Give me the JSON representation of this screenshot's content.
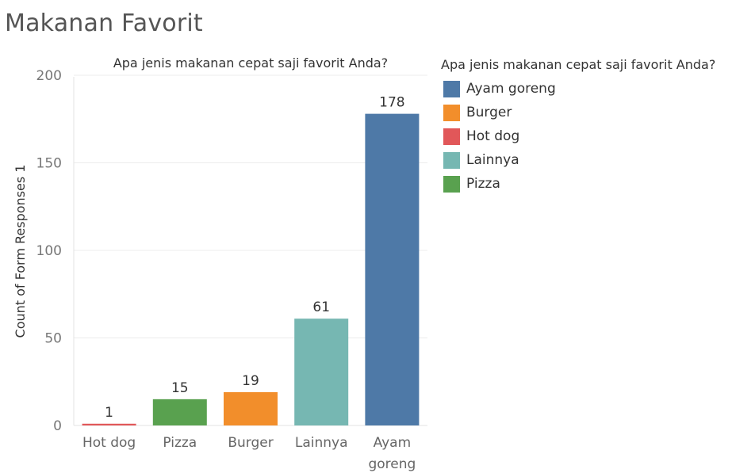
{
  "page": {
    "title": "Makanan Favorit"
  },
  "chart_data": {
    "type": "bar",
    "title": "Apa jenis makanan cepat saji favorit Anda?",
    "xlabel": "",
    "ylabel": "Count of Form Responses 1",
    "ylim": [
      0,
      200
    ],
    "yticks": [
      0,
      50,
      100,
      150,
      200
    ],
    "grid": true,
    "categories": [
      "Hot dog",
      "Pizza",
      "Burger",
      "Lainnya",
      "Ayam goreng"
    ],
    "category_lines": [
      [
        "Hot dog"
      ],
      [
        "Pizza"
      ],
      [
        "Burger"
      ],
      [
        "Lainnya"
      ],
      [
        "Ayam",
        "goreng"
      ]
    ],
    "values": [
      1,
      15,
      19,
      61,
      178
    ],
    "colors": [
      "#e15759",
      "#59a14f",
      "#f28e2b",
      "#76b7b2",
      "#4e79a7"
    ],
    "legend": {
      "title": "Apa jenis makanan cepat saji favorit Anda?",
      "position": "right",
      "items": [
        {
          "label": "Ayam goreng",
          "color": "#4e79a7"
        },
        {
          "label": "Burger",
          "color": "#f28e2b"
        },
        {
          "label": "Hot dog",
          "color": "#e15759"
        },
        {
          "label": "Lainnya",
          "color": "#76b7b2"
        },
        {
          "label": "Pizza",
          "color": "#59a14f"
        }
      ]
    }
  }
}
